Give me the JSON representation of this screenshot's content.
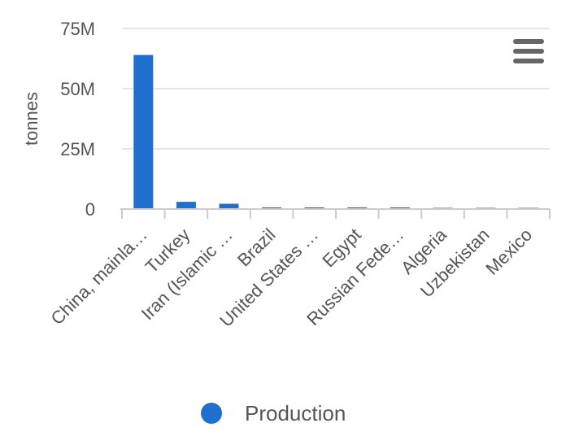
{
  "chart_data": {
    "type": "bar",
    "title": "",
    "xlabel": "",
    "ylabel": "tonnes",
    "categories": [
      "China, mainla…",
      "Turkey",
      "Iran (Islamic …",
      "Brazil",
      "United States …",
      "Egypt",
      "Russian Fede…",
      "Algeria",
      "Uzbekistan",
      "Mexico"
    ],
    "series": [
      {
        "name": "Production",
        "color": "#1f6fcf",
        "values": [
          64000000,
          3000000,
          2200000,
          700000,
          700000,
          700000,
          700000,
          300000,
          250000,
          200000
        ]
      }
    ],
    "ylim": [
      0,
      75000000
    ],
    "yticks": [
      {
        "value": 0,
        "label": "0"
      },
      {
        "value": 25000000,
        "label": "25M"
      },
      {
        "value": 50000000,
        "label": "50M"
      },
      {
        "value": 75000000,
        "label": "75M"
      }
    ],
    "grid": true,
    "legend": {
      "position": "bottom-center"
    },
    "menu": {
      "icon": "hamburger-menu-icon"
    }
  }
}
